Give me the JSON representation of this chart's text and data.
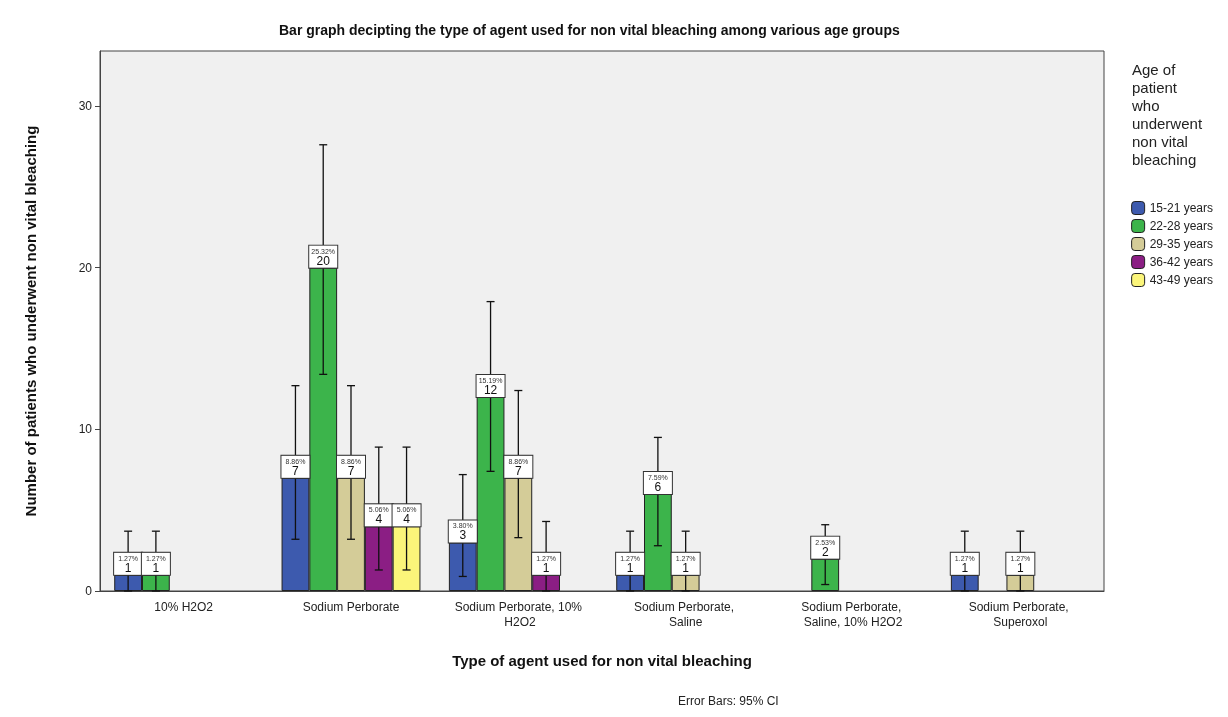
{
  "chart_data": {
    "type": "bar",
    "title": "Bar graph decipting the type of agent used for non vital bleaching among various age groups",
    "xlabel": "Type of agent used for non vital bleaching",
    "ylabel": "Number of patients who underwent non vital bleaching",
    "legend_title": "Age of patient who underwent non vital bleaching",
    "legend": "right",
    "grid": false,
    "categories": [
      "10% H2O2",
      "Sodium Perborate",
      "Sodium Perborate, 10% H2O2",
      "Sodium Perborate, Saline",
      "Sodium Perborate, Saline, 10% H2O2",
      "Sodium Perborate, Superoxol"
    ],
    "ylim": [
      0,
      33.4
    ],
    "yticks": [
      0,
      10,
      20,
      30
    ],
    "series": [
      {
        "name": "15-21 years",
        "color": "#3d5aae",
        "values": [
          1,
          7,
          3,
          1,
          null,
          1
        ],
        "errors": [
          [
            0,
            3.7
          ],
          [
            3.2,
            12.7
          ],
          [
            0.9,
            7.2
          ],
          [
            0,
            3.7
          ],
          null,
          [
            0,
            3.7
          ]
        ],
        "value_labels": [
          "1.27%\n1",
          "8.86%\n7",
          "3.80%\n3",
          "1.27%\n1",
          null,
          "1.27%\n1"
        ]
      },
      {
        "name": "22-28 years",
        "color": "#3cb44b",
        "values": [
          1,
          20,
          12,
          6,
          2,
          null
        ],
        "errors": [
          [
            0,
            3.7
          ],
          [
            13.4,
            27.6
          ],
          [
            7.4,
            17.9
          ],
          [
            2.8,
            9.5
          ],
          [
            0.4,
            4.1
          ],
          null
        ],
        "value_labels": [
          "1.27%\n1",
          "25.32%\n20",
          "15.19%\n12",
          "7.59%\n6",
          "2.53%\n2",
          null
        ]
      },
      {
        "name": "29-35 years",
        "color": "#d4cc98",
        "values": [
          null,
          7,
          7,
          1,
          null,
          1
        ],
        "errors": [
          null,
          [
            3.2,
            12.7
          ],
          [
            3.3,
            12.4
          ],
          [
            0,
            3.7
          ],
          null,
          [
            0,
            3.7
          ]
        ],
        "value_labels": [
          null,
          "8.86%\n7",
          "8.86%\n7",
          "1.27%\n1",
          null,
          "1.27%\n1"
        ]
      },
      {
        "name": "36-42 years",
        "color": "#8b1e84",
        "values": [
          null,
          4,
          1,
          null,
          null,
          null
        ],
        "errors": [
          null,
          [
            1.3,
            8.9
          ],
          [
            0,
            4.3
          ],
          null,
          null,
          null
        ],
        "value_labels": [
          null,
          "5.06%\n4",
          "1.27%\n1",
          null,
          null,
          null
        ]
      },
      {
        "name": "43-49 years",
        "color": "#fbf57a",
        "values": [
          null,
          4,
          null,
          null,
          null,
          null
        ],
        "errors": [
          null,
          [
            1.3,
            8.9
          ],
          null,
          null,
          null,
          null
        ],
        "value_labels": [
          null,
          "5.06%\n4",
          null,
          null,
          null,
          null
        ]
      }
    ],
    "annotations": [
      "Error Bars: 95% CI"
    ]
  }
}
